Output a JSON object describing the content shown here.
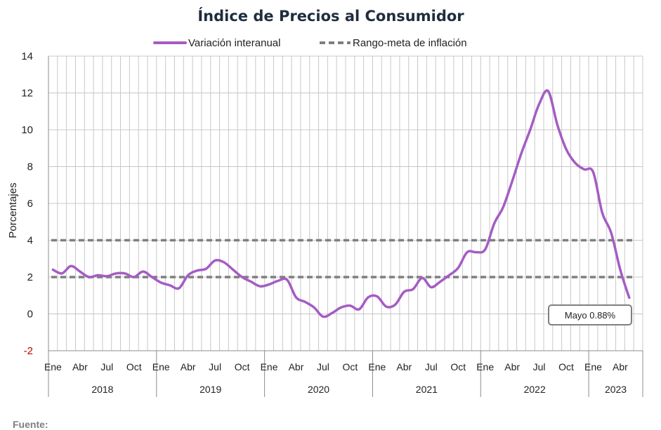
{
  "chart_data": {
    "type": "line",
    "title": "Índice de Precios al Consumidor",
    "ylabel": "Porcentajes",
    "xlabel": "",
    "ylim": [
      -2,
      14
    ],
    "yticks": [
      -2,
      0,
      2,
      4,
      6,
      8,
      10,
      12,
      14
    ],
    "grid": true,
    "legend_position": "top-center",
    "month_labels": [
      "Ene",
      "Abr",
      "Jul",
      "Oct"
    ],
    "years": [
      "2018",
      "2019",
      "2020",
      "2021",
      "2022",
      "2023"
    ],
    "x": [
      "2018-01",
      "2018-02",
      "2018-03",
      "2018-04",
      "2018-05",
      "2018-06",
      "2018-07",
      "2018-08",
      "2018-09",
      "2018-10",
      "2018-11",
      "2018-12",
      "2019-01",
      "2019-02",
      "2019-03",
      "2019-04",
      "2019-05",
      "2019-06",
      "2019-07",
      "2019-08",
      "2019-09",
      "2019-10",
      "2019-11",
      "2019-12",
      "2020-01",
      "2020-02",
      "2020-03",
      "2020-04",
      "2020-05",
      "2020-06",
      "2020-07",
      "2020-08",
      "2020-09",
      "2020-10",
      "2020-11",
      "2020-12",
      "2021-01",
      "2021-02",
      "2021-03",
      "2021-04",
      "2021-05",
      "2021-06",
      "2021-07",
      "2021-08",
      "2021-09",
      "2021-10",
      "2021-11",
      "2021-12",
      "2022-01",
      "2022-02",
      "2022-03",
      "2022-04",
      "2022-05",
      "2022-06",
      "2022-07",
      "2022-08",
      "2022-09",
      "2022-10",
      "2022-11",
      "2022-12",
      "2023-01",
      "2023-02",
      "2023-03",
      "2023-04",
      "2023-05"
    ],
    "series": [
      {
        "name": "Variación interanual",
        "color": "#a55cc4",
        "style": "solid",
        "values": [
          2.4,
          2.2,
          2.6,
          2.3,
          2.0,
          2.1,
          2.05,
          2.2,
          2.2,
          2.0,
          2.3,
          2.0,
          1.7,
          1.55,
          1.4,
          2.1,
          2.35,
          2.45,
          2.9,
          2.8,
          2.4,
          2.0,
          1.75,
          1.5,
          1.6,
          1.8,
          1.85,
          0.9,
          0.65,
          0.35,
          -0.15,
          0.05,
          0.35,
          0.45,
          0.25,
          0.9,
          0.95,
          0.4,
          0.5,
          1.2,
          1.35,
          1.95,
          1.45,
          1.75,
          2.1,
          2.5,
          3.35,
          3.35,
          3.5,
          4.9,
          5.8,
          7.2,
          8.7,
          10.0,
          11.4,
          12.1,
          10.3,
          8.95,
          8.2,
          7.85,
          7.7,
          5.5,
          4.4,
          2.4,
          0.88
        ]
      },
      {
        "name": "Rango-meta de inflación",
        "color": "#7f7f7f",
        "style": "dashed",
        "lower": 2,
        "upper": 4
      }
    ],
    "annotation": "Mayo 0.88%"
  },
  "footer": {
    "source_label": "Fuente:"
  }
}
